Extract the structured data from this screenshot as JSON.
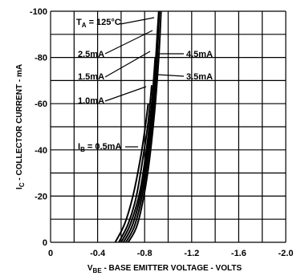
{
  "chart_data": {
    "type": "line",
    "xlabel": "V_BE - BASE EMITTER VOLTAGE - VOLTS",
    "xlabel_main": "V",
    "xlabel_sub": "BE",
    "xlabel_rest": " - BASE EMITTER VOLTAGE - VOLTS",
    "ylabel": "I_C - COLLECTOR CURRENT - mA",
    "ylabel_main": "I",
    "ylabel_sub": "C",
    "ylabel_rest": " - COLLECTOR CURRENT - mA",
    "xlim": [
      0,
      -2.0
    ],
    "ylim": [
      0,
      -100
    ],
    "x_ticks": [
      {
        "value": 0,
        "label": "0"
      },
      {
        "value": -0.4,
        "label": "-0.4"
      },
      {
        "value": -0.8,
        "label": "-0.8"
      },
      {
        "value": -1.2,
        "label": "-1.2"
      },
      {
        "value": -1.6,
        "label": "-1.6"
      },
      {
        "value": -2.0,
        "label": "-2.0"
      }
    ],
    "y_ticks": [
      {
        "value": 0,
        "label": "0"
      },
      {
        "value": -20,
        "label": "-20"
      },
      {
        "value": -40,
        "label": "-40"
      },
      {
        "value": -60,
        "label": "-60"
      },
      {
        "value": -80,
        "label": "-80"
      },
      {
        "value": -100,
        "label": "-100"
      }
    ],
    "grid": true,
    "condition": {
      "main": "T",
      "sub": "A",
      "rest": " = 125°C"
    },
    "series": [
      {
        "name": "0.5mA",
        "label_main": "I",
        "label_sub": "B",
        "label_rest": " = 0.5mA",
        "points": [
          [
            -0.55,
            0
          ],
          [
            -0.63,
            -8
          ],
          [
            -0.7,
            -20
          ],
          [
            -0.76,
            -35
          ],
          [
            -0.8,
            -48
          ],
          [
            -0.83,
            -60
          ]
        ]
      },
      {
        "name": "1.0mA",
        "label": "1.0mA",
        "points": [
          [
            -0.58,
            0
          ],
          [
            -0.66,
            -8
          ],
          [
            -0.73,
            -20
          ],
          [
            -0.79,
            -38
          ],
          [
            -0.83,
            -52
          ],
          [
            -0.86,
            -68
          ]
        ]
      },
      {
        "name": "1.5mA",
        "label": "1.5mA",
        "points": [
          [
            -0.6,
            0
          ],
          [
            -0.68,
            -8
          ],
          [
            -0.76,
            -22
          ],
          [
            -0.82,
            -42
          ],
          [
            -0.86,
            -60
          ],
          [
            -0.89,
            -80
          ]
        ]
      },
      {
        "name": "2.5mA",
        "label": "2.5mA",
        "points": [
          [
            -0.62,
            0
          ],
          [
            -0.7,
            -8
          ],
          [
            -0.78,
            -24
          ],
          [
            -0.84,
            -46
          ],
          [
            -0.88,
            -68
          ],
          [
            -0.91,
            -92
          ],
          [
            -0.92,
            -100
          ]
        ]
      },
      {
        "name": "3.5mA",
        "label": "3.5mA",
        "points": [
          [
            -0.64,
            0
          ],
          [
            -0.72,
            -8
          ],
          [
            -0.8,
            -26
          ],
          [
            -0.86,
            -50
          ],
          [
            -0.9,
            -74
          ],
          [
            -0.925,
            -100
          ]
        ]
      },
      {
        "name": "4.5mA",
        "label": "4.5mA",
        "points": [
          [
            -0.66,
            0
          ],
          [
            -0.74,
            -8
          ],
          [
            -0.82,
            -28
          ],
          [
            -0.88,
            -54
          ],
          [
            -0.92,
            -80
          ],
          [
            -0.94,
            -100
          ]
        ]
      }
    ]
  }
}
